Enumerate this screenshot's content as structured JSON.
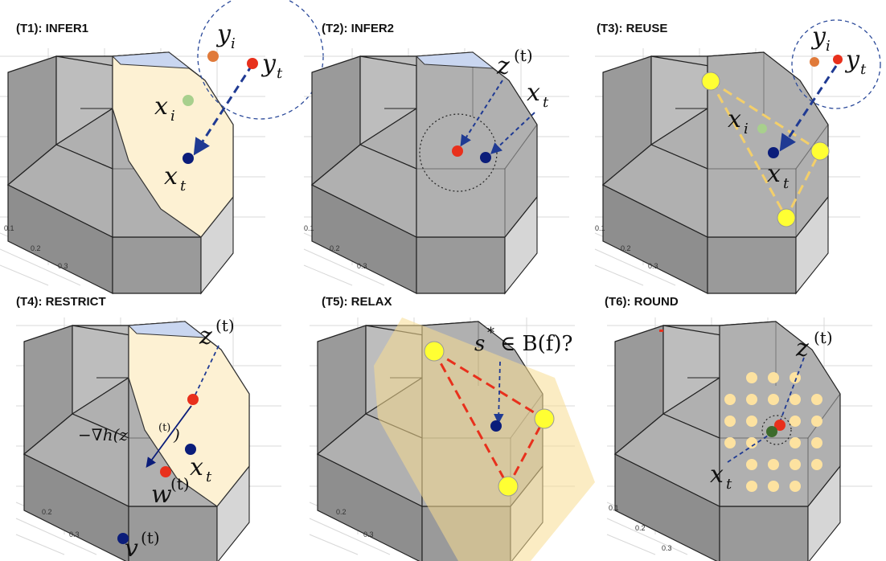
{
  "panels": [
    {
      "title": "(T1): INFER1",
      "labels": [
        "y",
        "i",
        "y",
        "t",
        "x",
        "i",
        "x",
        "t"
      ]
    },
    {
      "title": "(T2): INFER2",
      "labels": [
        "z",
        "(t)",
        "x",
        "t"
      ]
    },
    {
      "title": "(T3): REUSE",
      "labels": [
        "y",
        "i",
        "y",
        "t",
        "x",
        "i",
        "x",
        "t"
      ]
    },
    {
      "title": "(T4): RESTRICT",
      "labels": [
        "z",
        "(t)",
        "−∇h(z",
        "(t)",
        ")",
        "x",
        "t",
        "w",
        "(t)",
        "v",
        "(t)"
      ]
    },
    {
      "title": "(T5): RELAX",
      "labels": [
        "s",
        "*",
        "∈ B(f)?"
      ]
    },
    {
      "title": "(T6): ROUND",
      "labels": [
        "z",
        "(t)",
        "x",
        "t"
      ]
    }
  ],
  "ticks": [
    "0.1",
    "0.2",
    "0.3"
  ],
  "colors": {
    "facet": "#fdf1d3",
    "relax_region": "#f7dd92",
    "red_point": "#e8301c",
    "blue_point": "#0b1d7a",
    "green_point": "#a8d08d",
    "orange_point": "#e07a3a",
    "yellow_vertex": "#ffff33",
    "dash_blue": "#1f3a93",
    "dash_yellow": "#f3cf6a",
    "dash_red": "#e8301c",
    "round_dots": "#fde2a0"
  }
}
